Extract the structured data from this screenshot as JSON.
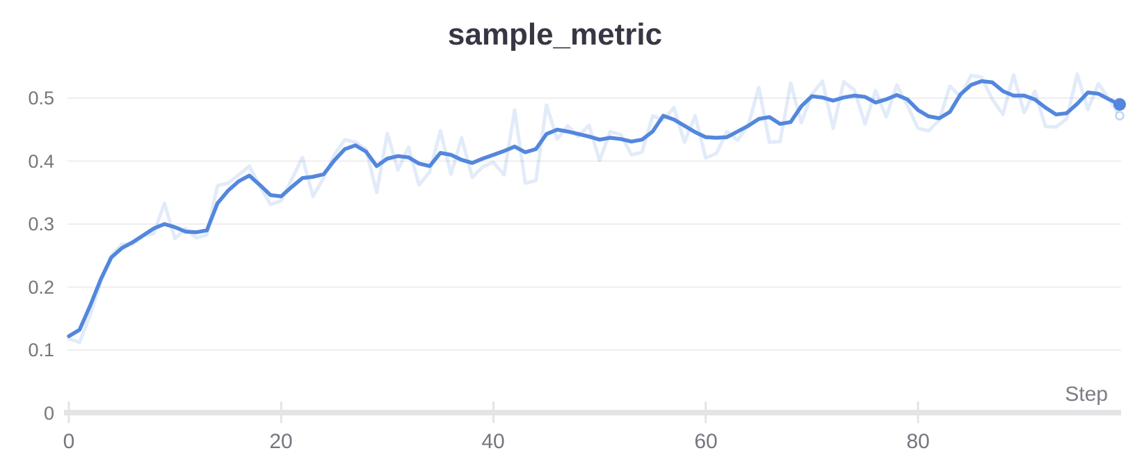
{
  "page": {
    "background_color": "#ffffff"
  },
  "panel": {
    "title": "sample_metric",
    "x_axis_title": "Step"
  },
  "chart_data": {
    "type": "line",
    "title": "sample_metric",
    "xlabel": "Step",
    "ylabel": "",
    "x_range": [
      0,
      99
    ],
    "y_range": [
      0,
      0.55
    ],
    "grid": true,
    "legend": "none",
    "x": [
      0,
      1,
      2,
      3,
      4,
      5,
      6,
      7,
      8,
      9,
      10,
      11,
      12,
      13,
      14,
      15,
      16,
      17,
      18,
      19,
      20,
      21,
      22,
      23,
      24,
      25,
      26,
      27,
      28,
      29,
      30,
      31,
      32,
      33,
      34,
      35,
      36,
      37,
      38,
      39,
      40,
      41,
      42,
      43,
      44,
      45,
      46,
      47,
      48,
      49,
      50,
      51,
      52,
      53,
      54,
      55,
      56,
      57,
      58,
      59,
      60,
      61,
      62,
      63,
      64,
      65,
      66,
      67,
      68,
      69,
      70,
      71,
      72,
      73,
      74,
      75,
      76,
      77,
      78,
      79,
      80,
      81,
      82,
      83,
      84,
      85,
      86,
      87,
      88,
      89,
      90,
      91,
      92,
      93,
      94,
      95,
      96,
      97,
      98,
      99
    ],
    "series": [
      {
        "name": "sample_metric (original)",
        "role": "raw",
        "color": "#5387DD",
        "opacity": 0.17,
        "values": [
          0.118,
          0.112,
          0.155,
          0.208,
          0.25,
          0.268,
          0.268,
          0.281,
          0.285,
          0.333,
          0.277,
          0.293,
          0.278,
          0.283,
          0.361,
          0.365,
          0.378,
          0.392,
          0.36,
          0.331,
          0.337,
          0.371,
          0.406,
          0.344,
          0.373,
          0.41,
          0.434,
          0.43,
          0.419,
          0.35,
          0.444,
          0.386,
          0.422,
          0.362,
          0.383,
          0.448,
          0.379,
          0.437,
          0.374,
          0.391,
          0.398,
          0.378,
          0.481,
          0.365,
          0.369,
          0.489,
          0.435,
          0.456,
          0.439,
          0.457,
          0.401,
          0.447,
          0.442,
          0.41,
          0.414,
          0.472,
          0.465,
          0.485,
          0.43,
          0.472,
          0.405,
          0.412,
          0.447,
          0.433,
          0.457,
          0.517,
          0.43,
          0.431,
          0.524,
          0.461,
          0.506,
          0.527,
          0.452,
          0.526,
          0.513,
          0.459,
          0.512,
          0.47,
          0.521,
          0.488,
          0.452,
          0.448,
          0.465,
          0.519,
          0.502,
          0.536,
          0.533,
          0.498,
          0.474,
          0.537,
          0.477,
          0.511,
          0.455,
          0.454,
          0.467,
          0.538,
          0.482,
          0.523,
          0.498,
          0.472
        ]
      },
      {
        "name": "sample_metric (smoothed)",
        "role": "smoothed",
        "color": "#5387DD",
        "opacity": 1,
        "values": [
          0.122,
          0.132,
          0.17,
          0.212,
          0.247,
          0.262,
          0.271,
          0.282,
          0.293,
          0.3,
          0.295,
          0.288,
          0.287,
          0.29,
          0.333,
          0.353,
          0.368,
          0.377,
          0.362,
          0.346,
          0.344,
          0.359,
          0.373,
          0.375,
          0.379,
          0.401,
          0.419,
          0.425,
          0.415,
          0.392,
          0.404,
          0.408,
          0.406,
          0.396,
          0.392,
          0.413,
          0.41,
          0.402,
          0.397,
          0.404,
          0.41,
          0.416,
          0.423,
          0.414,
          0.419,
          0.443,
          0.45,
          0.447,
          0.443,
          0.439,
          0.434,
          0.437,
          0.435,
          0.431,
          0.434,
          0.447,
          0.472,
          0.466,
          0.456,
          0.446,
          0.438,
          0.437,
          0.438,
          0.447,
          0.456,
          0.467,
          0.47,
          0.459,
          0.462,
          0.487,
          0.503,
          0.501,
          0.496,
          0.501,
          0.504,
          0.502,
          0.493,
          0.498,
          0.505,
          0.498,
          0.481,
          0.471,
          0.468,
          0.478,
          0.506,
          0.521,
          0.527,
          0.525,
          0.511,
          0.504,
          0.504,
          0.498,
          0.485,
          0.474,
          0.476,
          0.491,
          0.509,
          0.507,
          0.498,
          0.49
        ]
      }
    ],
    "axes": {
      "x_ticks": [
        0,
        20,
        40,
        60,
        80
      ],
      "x_tick_labels": [
        "0",
        "20",
        "40",
        "60",
        "80"
      ],
      "y_ticks": [
        0,
        0.1,
        0.2,
        0.3,
        0.4,
        0.5
      ],
      "y_tick_labels": [
        "0",
        "0.1",
        "0.2",
        "0.3",
        "0.4",
        "0.5"
      ]
    },
    "colors": {
      "line": "#5387DD",
      "grid": "#e9e9ec",
      "axis_bar": "#e4e4e7",
      "title_text": "#373744",
      "tick_text": "#75757e"
    }
  }
}
